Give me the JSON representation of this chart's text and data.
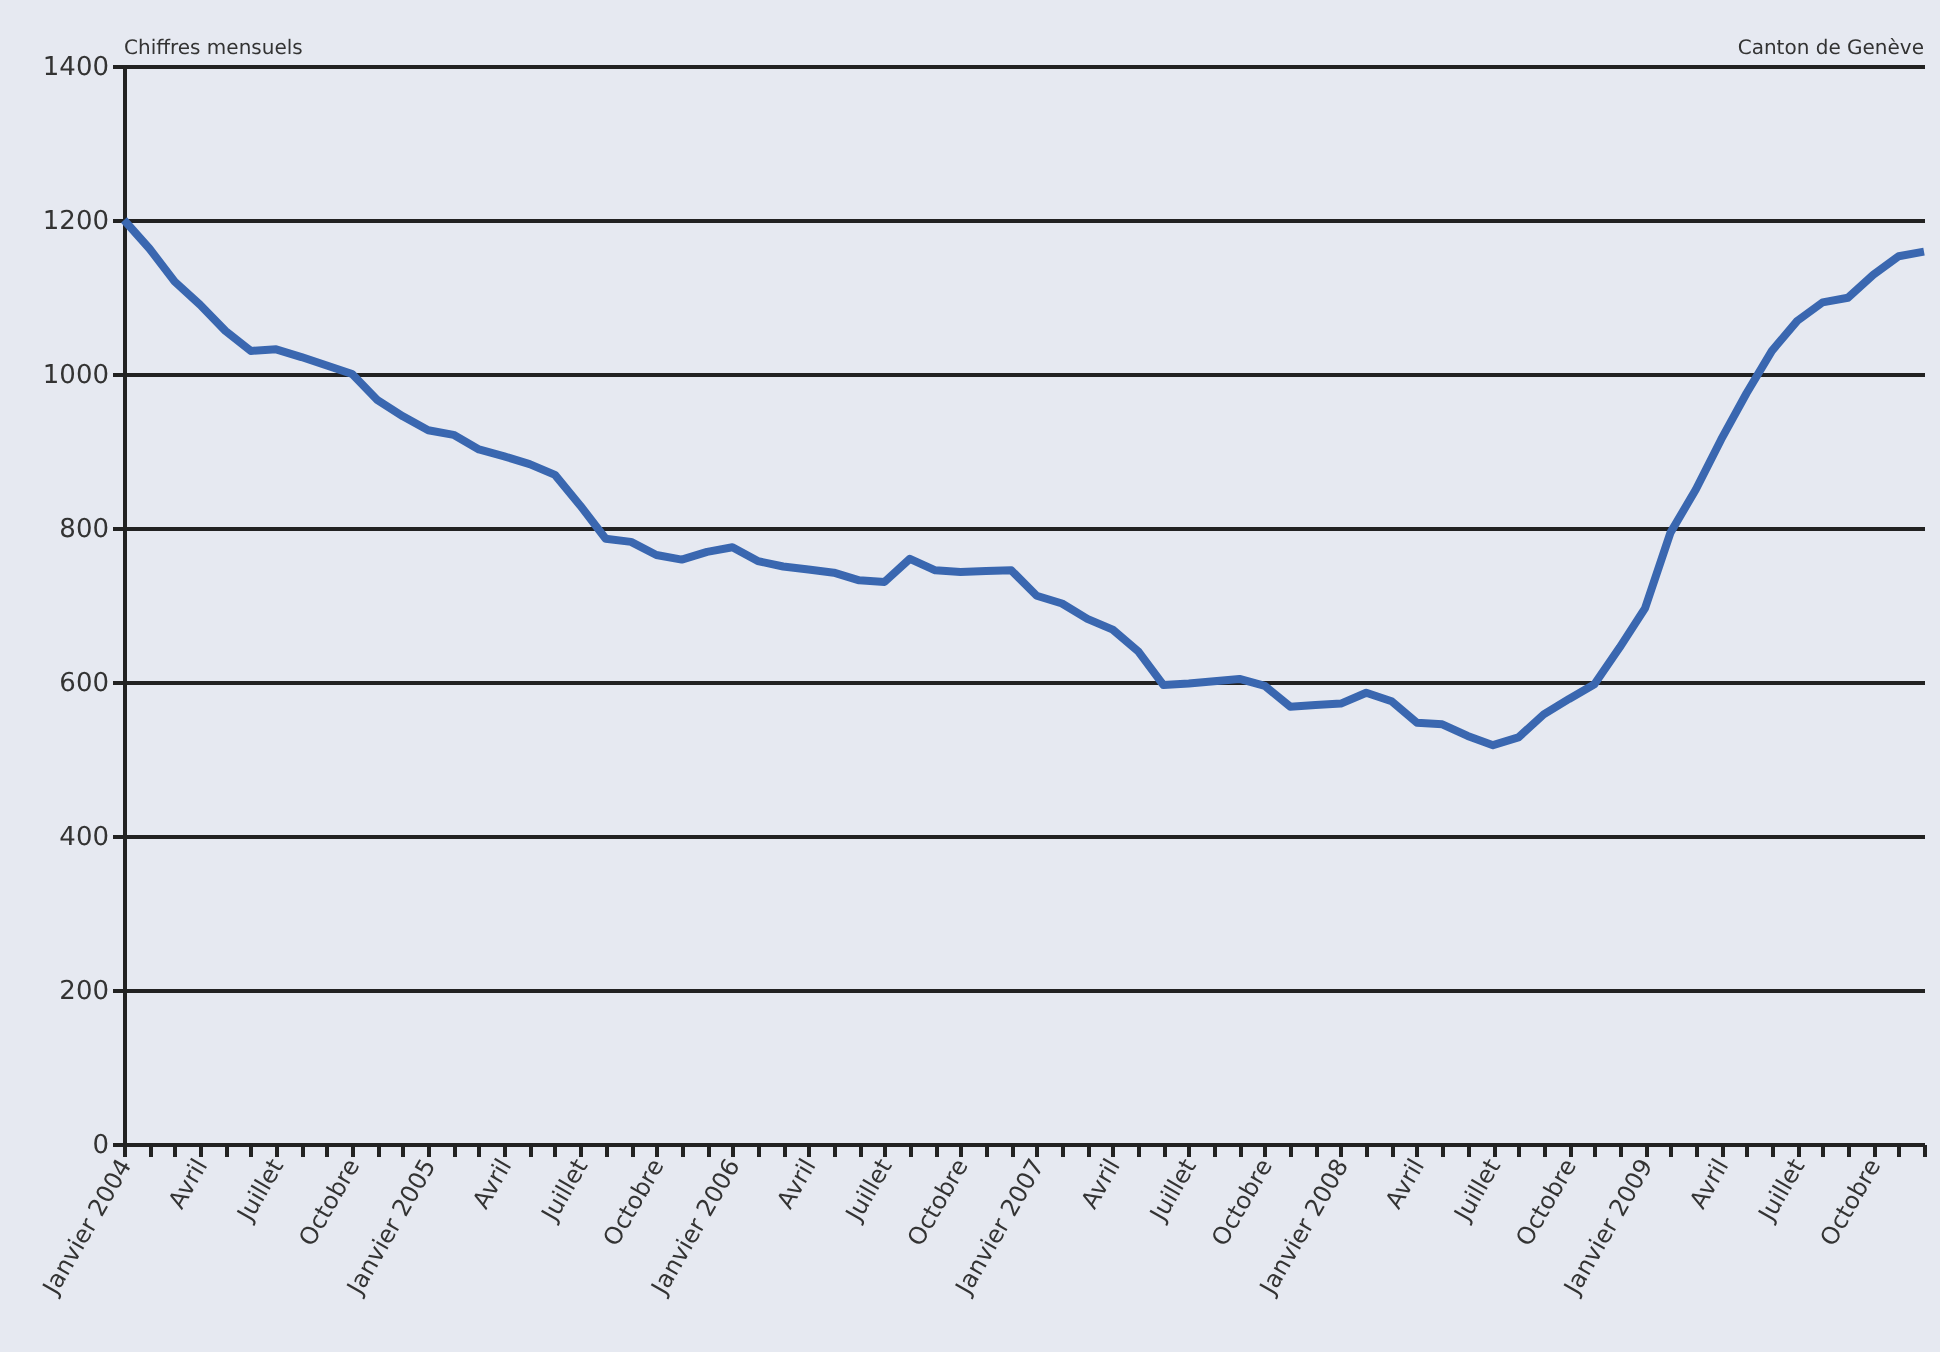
{
  "chart_data": {
    "type": "line",
    "categories": [
      "Janvier 2004",
      null,
      null,
      "Avril",
      null,
      null,
      "Juillet",
      null,
      null,
      "Octobre",
      null,
      null,
      "Janvier 2005",
      null,
      null,
      "Avril",
      null,
      null,
      "Juillet",
      null,
      null,
      "Octobre",
      null,
      null,
      "Janvier 2006",
      null,
      null,
      "Avril",
      null,
      null,
      "Juillet",
      null,
      null,
      "Octobre",
      null,
      null,
      "Janvier 2007",
      null,
      null,
      "Avril",
      null,
      null,
      "Juillet",
      null,
      null,
      "Octobre",
      null,
      null,
      "Janvier 2008",
      null,
      null,
      "Avril",
      null,
      null,
      "Juillet",
      null,
      null,
      "Octobre",
      null,
      null,
      "Janvier 2009",
      null,
      null,
      "Avril",
      null,
      null,
      "Juillet",
      null,
      null,
      "Octobre",
      null,
      null
    ],
    "series": [
      {
        "color": "#3a67b0",
        "values": [
          1200,
          1163,
          1120,
          1090,
          1056,
          1030,
          1032,
          1022,
          1011,
          1000,
          966,
          945,
          927,
          921,
          902,
          893,
          883,
          869,
          829,
          786,
          782,
          765,
          759,
          769,
          775,
          757,
          750,
          746,
          742,
          732,
          730,
          760,
          745,
          743,
          744,
          745,
          712,
          702,
          682,
          668,
          640,
          596,
          598,
          601,
          604,
          595,
          568,
          570,
          572,
          586,
          575,
          547,
          545,
          530,
          518,
          528,
          558,
          578,
          597,
          645,
          696,
          794,
          850,
          915,
          975,
          1030,
          1069,
          1093,
          1099,
          1129,
          1153,
          1159
        ]
      }
    ],
    "ylim": [
      0,
      1400
    ],
    "yticks": [
      0,
      200,
      400,
      600,
      800,
      1000,
      1200,
      1400
    ],
    "grid": "y",
    "annotations": [
      "Chiffres mensuels",
      "Canton de Genève"
    ]
  }
}
